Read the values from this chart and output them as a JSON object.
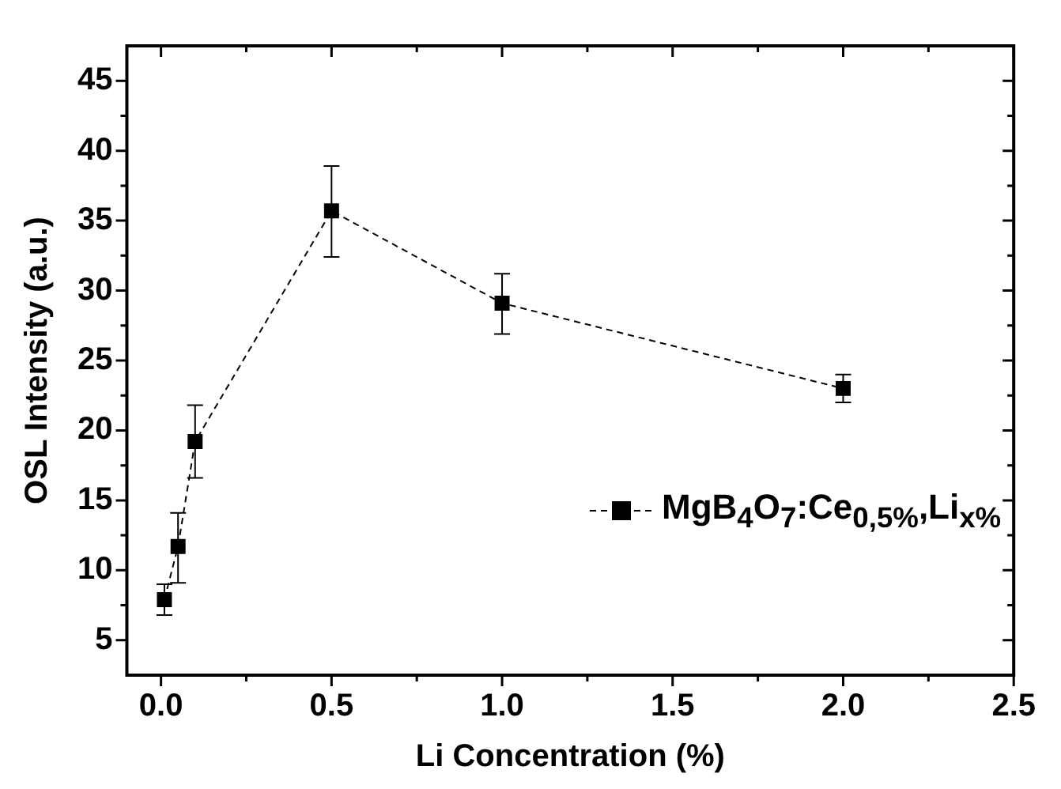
{
  "chart_data": {
    "type": "line",
    "xlabel": "Li Concentration (%)",
    "ylabel": "OSL Intensity (a.u.)",
    "x": [
      0.01,
      0.05,
      0.1,
      0.5,
      1.0,
      2.0
    ],
    "series": [
      {
        "name": "MgB$_{4}$O$_{7}$:Ce$_{0,5%}$,Li$_{x%}$",
        "color": "#000000",
        "values": [
          7.9,
          11.7,
          19.2,
          35.7,
          29.1,
          23.0
        ],
        "errors": [
          [
            6.8,
            9.0
          ],
          [
            9.1,
            14.1
          ],
          [
            16.6,
            21.8
          ],
          [
            32.4,
            38.9
          ],
          [
            26.9,
            31.2
          ],
          [
            22.0,
            24.0
          ]
        ]
      }
    ],
    "xlim": [
      -0.1,
      2.5
    ],
    "ylim": [
      2.5,
      47.5
    ],
    "xticks": [
      {
        "value": 0,
        "label": "0.0"
      },
      {
        "value": 0.25,
        "label": null
      },
      0.5,
      {
        "value": 0.75,
        "label": null
      },
      {
        "value": 1,
        "label": "1.0"
      },
      {
        "value": 1.25,
        "label": null
      },
      1.5,
      {
        "value": 1.75,
        "label": null
      },
      {
        "value": 2,
        "label": "2.0"
      },
      {
        "value": 2.25,
        "label": null
      },
      2.5
    ],
    "yticks": [
      5,
      {
        "value": 7.5,
        "label": null
      },
      10,
      {
        "value": 12.5,
        "label": null
      },
      15,
      {
        "value": 17.5,
        "label": null
      },
      20,
      {
        "value": 22.5,
        "label": null
      },
      25,
      {
        "value": 27.5,
        "label": null
      },
      30,
      {
        "value": 32.5,
        "label": null
      },
      35,
      {
        "value": 37.5,
        "label": null
      },
      40,
      {
        "value": 42.5,
        "label": null
      },
      45
    ],
    "marker": "square",
    "line_style": "dashed",
    "grid": false,
    "legend": "right"
  }
}
